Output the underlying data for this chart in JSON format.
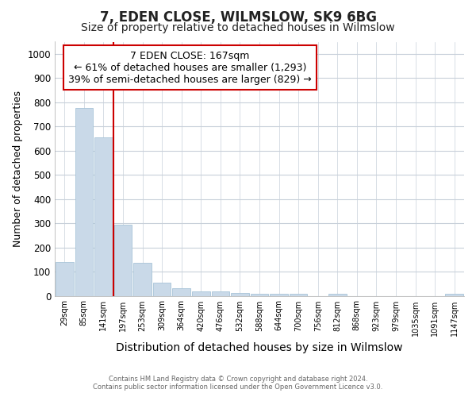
{
  "title1": "7, EDEN CLOSE, WILMSLOW, SK9 6BG",
  "title2": "Size of property relative to detached houses in Wilmslow",
  "xlabel": "Distribution of detached houses by size in Wilmslow",
  "ylabel": "Number of detached properties",
  "bin_labels": [
    "29sqm",
    "85sqm",
    "141sqm",
    "197sqm",
    "253sqm",
    "309sqm",
    "364sqm",
    "420sqm",
    "476sqm",
    "532sqm",
    "588sqm",
    "644sqm",
    "700sqm",
    "756sqm",
    "812sqm",
    "868sqm",
    "923sqm",
    "979sqm",
    "1035sqm",
    "1091sqm",
    "1147sqm"
  ],
  "bar_heights": [
    140,
    775,
    655,
    295,
    135,
    55,
    30,
    18,
    18,
    10,
    8,
    8,
    8,
    0,
    8,
    0,
    0,
    0,
    0,
    0,
    8
  ],
  "bar_color": "#c9d9e8",
  "bar_edgecolor": "#a8c4d8",
  "vline_x": 2.5,
  "vline_color": "#cc0000",
  "annotation_text": "7 EDEN CLOSE: 167sqm\n← 61% of detached houses are smaller (1,293)\n39% of semi-detached houses are larger (829) →",
  "annotation_box_color": "#ffffff",
  "annotation_box_edgecolor": "#cc0000",
  "ylim": [
    0,
    1050
  ],
  "yticks": [
    0,
    100,
    200,
    300,
    400,
    500,
    600,
    700,
    800,
    900,
    1000
  ],
  "footer1": "Contains HM Land Registry data © Crown copyright and database right 2024.",
  "footer2": "Contains public sector information licensed under the Open Government Licence v3.0.",
  "bg_color": "#ffffff",
  "grid_color": "#c8d0da",
  "title1_fontsize": 12,
  "title2_fontsize": 10,
  "xlabel_fontsize": 10,
  "ylabel_fontsize": 9,
  "annotation_fontsize": 9
}
